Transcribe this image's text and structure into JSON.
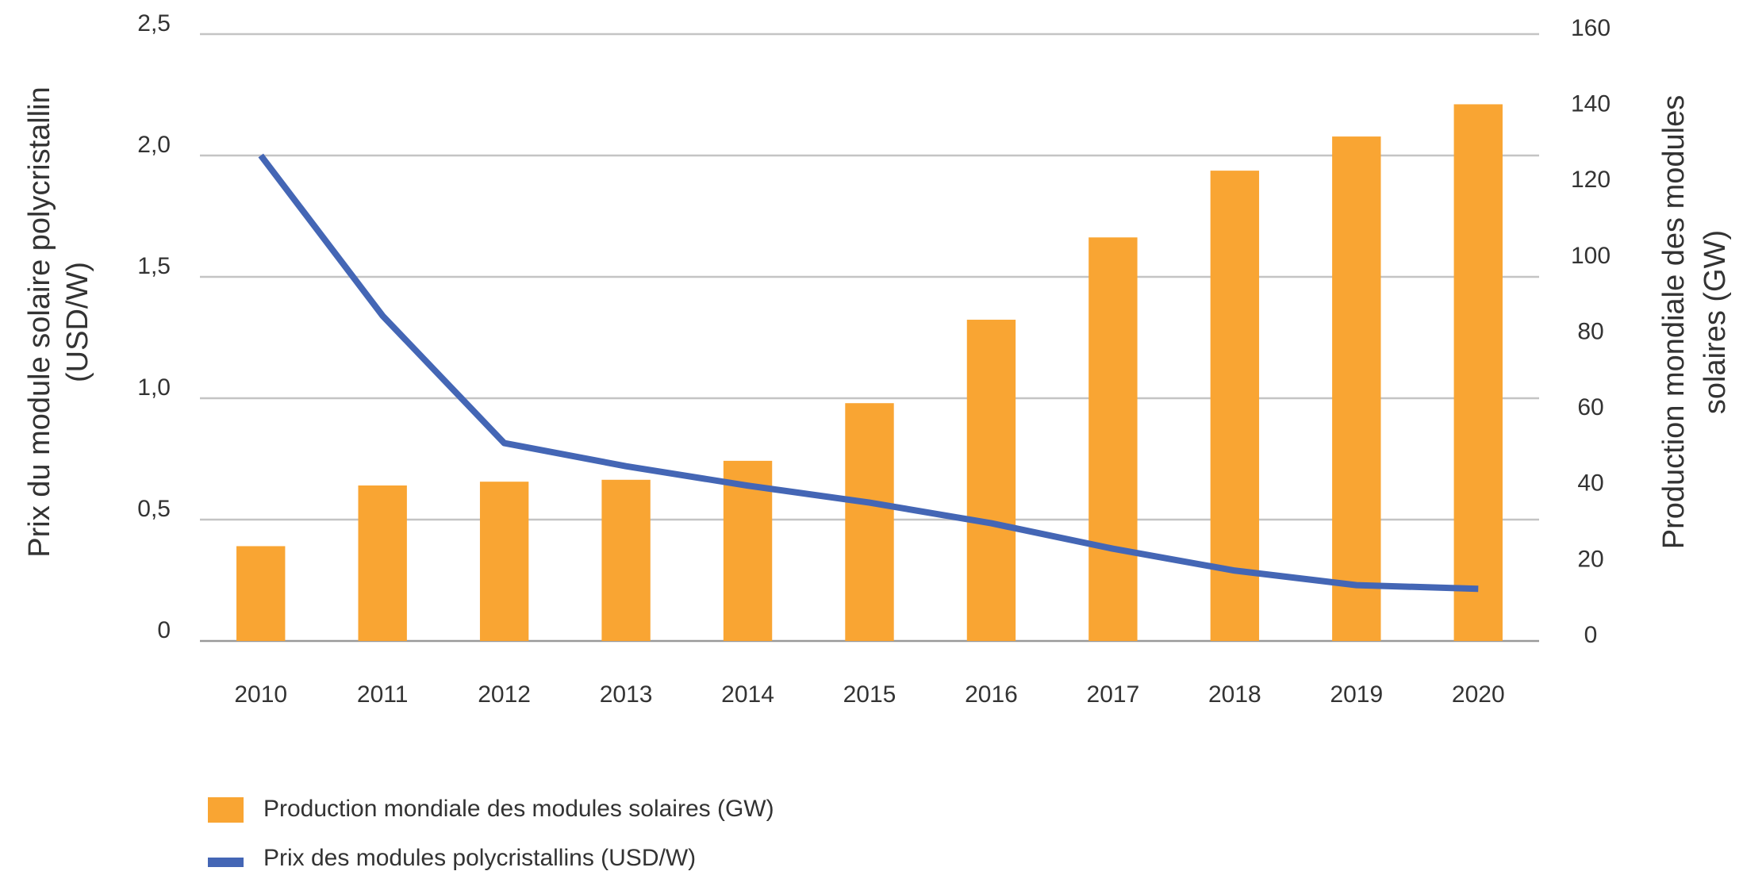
{
  "chart_data": {
    "type": "bar_line",
    "y_label": [
      "Prix du module solaire polycristallin",
      "(USD/W)"
    ],
    "y2_label": [
      "Production mondiale des modules",
      "solaires (GW)"
    ],
    "categories": [
      "2010",
      "2011",
      "2012",
      "2013",
      "2014",
      "2015",
      "2016",
      "2017",
      "2018",
      "2019",
      "2020"
    ],
    "series": [
      {
        "name": "Production mondiale des modules solaires (GW)",
        "type": "bar",
        "axis": "y2",
        "color": "#f9a533",
        "values": [
          25,
          41,
          42,
          42.5,
          47.5,
          62.7,
          84.7,
          106.4,
          124,
          133,
          141.5
        ]
      },
      {
        "name": "Prix des modules polycristallins (USD/W)",
        "type": "line",
        "axis": "y",
        "color": "#4466b5",
        "values": [
          2.0,
          1.34,
          0.815,
          0.72,
          0.64,
          0.57,
          0.485,
          0.38,
          0.29,
          0.23,
          0.215
        ]
      }
    ],
    "ylim": [
      0,
      2.5
    ],
    "yticks": [
      0,
      {
        "value": 0.5,
        "label": "0,5"
      },
      {
        "value": 1.0,
        "label": "1,0"
      },
      {
        "value": 1.5,
        "label": "1,5"
      },
      {
        "value": 2.0,
        "label": "2,0"
      },
      {
        "value": 2.5,
        "label": "2,5"
      }
    ],
    "y2lim": [
      0,
      160
    ],
    "y2ticks": [
      0,
      20,
      40,
      60,
      80,
      100,
      120,
      140,
      160
    ],
    "grid": true,
    "legend": "bottom-left"
  }
}
